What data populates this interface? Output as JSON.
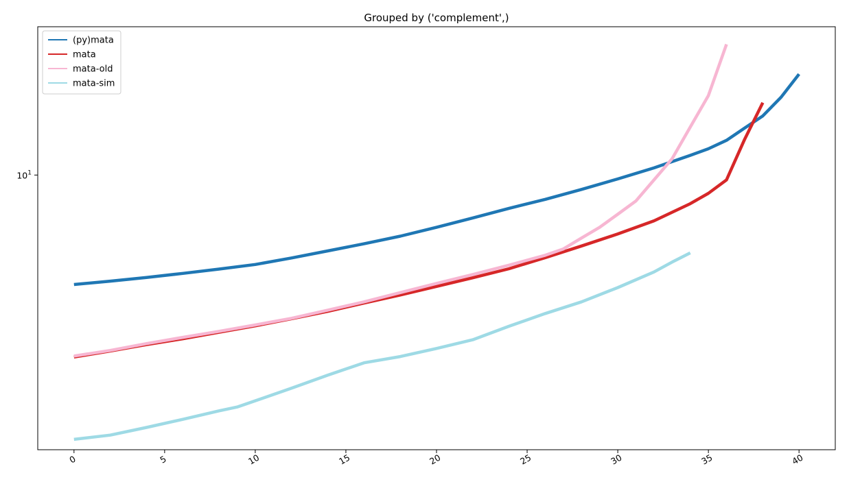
{
  "chart_data": {
    "type": "line",
    "title": "Grouped by ('complement',)",
    "xlabel": "",
    "ylabel": "",
    "yscale": "log",
    "xlim": [
      -2,
      42
    ],
    "ylim": [
      3.2,
      18.5
    ],
    "x_ticks": [
      0,
      5,
      10,
      15,
      20,
      25,
      30,
      35,
      40
    ],
    "x_tick_labels": [
      "0",
      "5",
      "10",
      "15",
      "20",
      "25",
      "30",
      "35",
      "40"
    ],
    "y_ticks": [
      10
    ],
    "y_tick_labels": [
      {
        "base": "10",
        "exp": "1"
      }
    ],
    "grid": false,
    "legend_position": "upper-left",
    "series": [
      {
        "name": "(py)mata",
        "color": "#1f77b4",
        "x": [
          0,
          2,
          4,
          6,
          8,
          10,
          12,
          14,
          16,
          18,
          20,
          22,
          24,
          26,
          28,
          30,
          32,
          34,
          35,
          36,
          37,
          38,
          39,
          40
        ],
        "y": [
          6.35,
          6.44,
          6.54,
          6.65,
          6.77,
          6.9,
          7.09,
          7.3,
          7.52,
          7.76,
          8.05,
          8.37,
          8.71,
          9.04,
          9.42,
          9.84,
          10.3,
          10.85,
          11.15,
          11.55,
          12.15,
          12.78,
          13.8,
          15.2
        ]
      },
      {
        "name": "mata",
        "color": "#d62728",
        "x": [
          0,
          2,
          4,
          6,
          8,
          10,
          12,
          14,
          16,
          18,
          20,
          22,
          24,
          26,
          28,
          30,
          32,
          34,
          35,
          36,
          37,
          38
        ],
        "y": [
          4.7,
          4.82,
          4.95,
          5.07,
          5.21,
          5.35,
          5.51,
          5.68,
          5.88,
          6.08,
          6.3,
          6.53,
          6.78,
          7.1,
          7.45,
          7.83,
          8.27,
          8.88,
          9.27,
          9.8,
          11.6,
          13.5
        ]
      },
      {
        "name": "mata-old",
        "color": "#f7b6d2",
        "x": [
          0,
          2,
          4,
          6,
          8,
          10,
          12,
          14,
          16,
          18,
          20,
          22,
          24,
          26,
          27,
          28,
          29,
          30,
          31,
          32,
          33,
          34,
          35,
          36
        ],
        "y": [
          4.72,
          4.83,
          4.97,
          5.1,
          5.23,
          5.37,
          5.52,
          5.71,
          5.91,
          6.14,
          6.38,
          6.62,
          6.88,
          7.17,
          7.36,
          7.7,
          8.05,
          8.5,
          8.98,
          9.8,
          10.7,
          12.2,
          13.9,
          17.2
        ]
      },
      {
        "name": "mata-sim",
        "color": "#9edae5",
        "x": [
          0,
          2,
          4,
          6,
          8,
          9,
          10,
          12,
          14,
          16,
          18,
          20,
          22,
          24,
          26,
          28,
          30,
          32,
          33,
          34
        ],
        "y": [
          3.34,
          3.4,
          3.51,
          3.63,
          3.76,
          3.82,
          3.92,
          4.13,
          4.36,
          4.59,
          4.71,
          4.87,
          5.05,
          5.34,
          5.63,
          5.91,
          6.27,
          6.69,
          6.97,
          7.24
        ]
      }
    ]
  }
}
